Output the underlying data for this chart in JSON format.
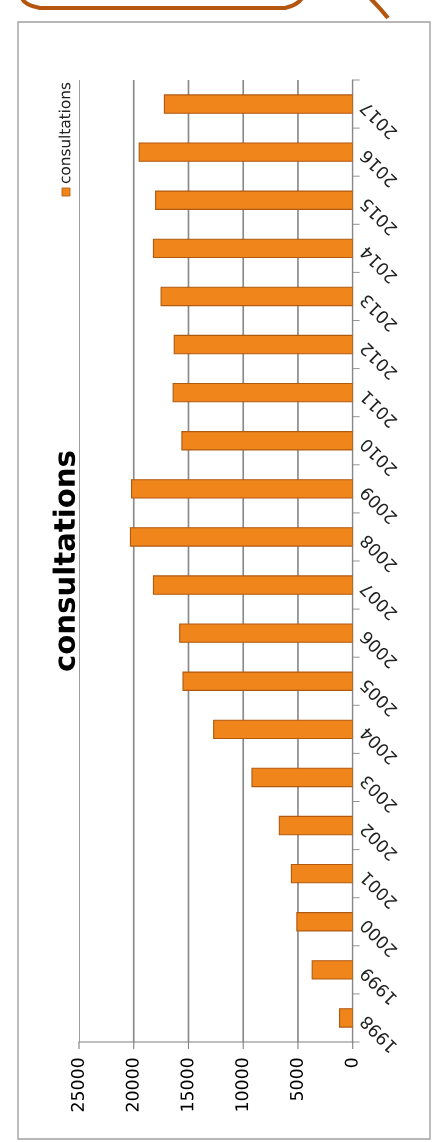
{
  "chart_data": {
    "type": "bar",
    "orientation": "horizontal",
    "title": "consultations",
    "categories": [
      "2017",
      "2016",
      "2015",
      "2014",
      "2013",
      "2012",
      "2011",
      "2010",
      "2009",
      "2008",
      "2007",
      "2006",
      "2005",
      "2004",
      "2003",
      "2002",
      "2001",
      "2000",
      "1999",
      "1998"
    ],
    "series": [
      {
        "name": "consultations",
        "color": "#f0851c",
        "values": [
          17200,
          19500,
          18000,
          18200,
          17500,
          16300,
          16400,
          15600,
          20200,
          20300,
          18200,
          15800,
          15500,
          12700,
          9200,
          6700,
          5600,
          5100,
          3700,
          1200
        ]
      }
    ],
    "xlim": [
      25000,
      0
    ],
    "xticks": [
      25000,
      20000,
      15000,
      10000,
      5000,
      0
    ],
    "grid": "x",
    "legend": "top left"
  }
}
